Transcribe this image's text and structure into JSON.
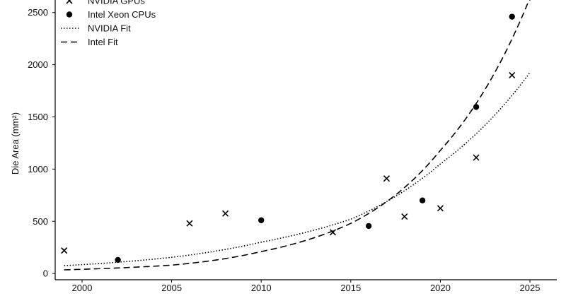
{
  "chart_data": {
    "type": "scatter",
    "title": "",
    "xlabel": "",
    "ylabel": "Die Area (mm²)",
    "xlim": [
      1998.5,
      2026.5
    ],
    "ylim": [
      -60,
      2620
    ],
    "x_ticks": [
      2000,
      2005,
      2010,
      2015,
      2020,
      2025
    ],
    "y_ticks": [
      0,
      500,
      1000,
      1500,
      2000,
      2500
    ],
    "x_tick_labels": [
      "2000",
      "2005",
      "2010",
      "2015",
      "2020",
      "2025"
    ],
    "y_tick_labels": [
      "0",
      "500",
      "1000",
      "1500",
      "2000",
      "2500"
    ],
    "grid": false,
    "legend_position": "top-left",
    "series": [
      {
        "name": "NVIDIA GPUs",
        "marker": "x",
        "color": "#000000",
        "points": [
          {
            "x": 1999,
            "y": 220
          },
          {
            "x": 2006,
            "y": 480
          },
          {
            "x": 2008,
            "y": 575
          },
          {
            "x": 2014,
            "y": 395
          },
          {
            "x": 2017,
            "y": 910
          },
          {
            "x": 2018,
            "y": 545
          },
          {
            "x": 2020,
            "y": 625
          },
          {
            "x": 2022,
            "y": 1110
          },
          {
            "x": 2024,
            "y": 1900
          }
        ]
      },
      {
        "name": "Intel Xeon CPUs",
        "marker": "circle",
        "color": "#000000",
        "points": [
          {
            "x": 2002,
            "y": 130
          },
          {
            "x": 2010,
            "y": 510
          },
          {
            "x": 2016,
            "y": 455
          },
          {
            "x": 2019,
            "y": 700
          },
          {
            "x": 2022,
            "y": 1595
          },
          {
            "x": 2024,
            "y": 2460
          }
        ]
      },
      {
        "name": "NVIDIA Fit",
        "line_style": "dotted",
        "color": "#000000",
        "points": [
          {
            "x": 1999,
            "y": 75
          },
          {
            "x": 2005,
            "y": 155
          },
          {
            "x": 2010,
            "y": 300
          },
          {
            "x": 2015,
            "y": 520
          },
          {
            "x": 2020,
            "y": 1050
          },
          {
            "x": 2025,
            "y": 1925
          }
        ]
      },
      {
        "name": "Intel Fit",
        "line_style": "dashed",
        "color": "#000000",
        "points": [
          {
            "x": 1999,
            "y": 35
          },
          {
            "x": 2005,
            "y": 80
          },
          {
            "x": 2010,
            "y": 210
          },
          {
            "x": 2015,
            "y": 480
          },
          {
            "x": 2020,
            "y": 1180
          },
          {
            "x": 2025,
            "y": 2640
          }
        ]
      }
    ]
  }
}
